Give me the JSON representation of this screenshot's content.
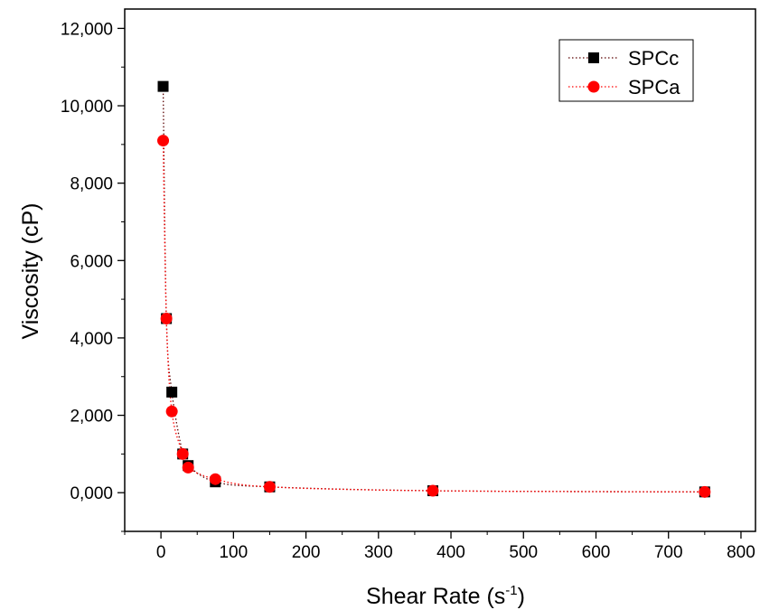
{
  "chart_data": {
    "type": "scatter",
    "title": "",
    "xlabel": "Shear Rate (s",
    "xlabel_superscript": "-1",
    "xlabel_suffix": ")",
    "ylabel": "Viscosity (cP)",
    "xlim": [
      -50,
      820
    ],
    "ylim": [
      -1000,
      12500
    ],
    "x_ticks": [
      0,
      100,
      200,
      300,
      400,
      500,
      600,
      700,
      800
    ],
    "x_tick_labels": [
      "0",
      "100",
      "200",
      "300",
      "400",
      "500",
      "600",
      "700",
      "800"
    ],
    "y_ticks": [
      0,
      2000,
      4000,
      6000,
      8000,
      10000,
      12000
    ],
    "y_tick_labels": [
      "0,000",
      "2,000",
      "4,000",
      "6,000",
      "8,000",
      "10,000",
      "12,000"
    ],
    "grid": false,
    "legend_position": "top-right",
    "series": [
      {
        "name": "SPCc",
        "marker": "square",
        "color": "#000000",
        "line_color": "#5a0000",
        "x": [
          3,
          7.5,
          15,
          30,
          37.5,
          75,
          150,
          375,
          750
        ],
        "y": [
          10500,
          4500,
          2600,
          1000,
          700,
          280,
          150,
          50,
          20
        ]
      },
      {
        "name": "SPCa",
        "marker": "circle",
        "color": "#ff0000",
        "line_color": "#ff0000",
        "x": [
          3,
          7.5,
          15,
          30,
          37.5,
          75,
          150,
          375,
          750
        ],
        "y": [
          9100,
          4500,
          2100,
          1000,
          650,
          350,
          150,
          50,
          20
        ]
      }
    ]
  }
}
